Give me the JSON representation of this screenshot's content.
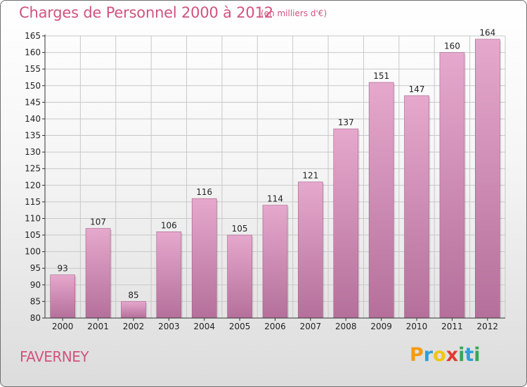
{
  "chart_data": {
    "type": "bar",
    "title": "Charges de Personnel 2000 à 2012",
    "subtitle": "(en milliers d'€)",
    "categories": [
      "2000",
      "2001",
      "2002",
      "2003",
      "2004",
      "2005",
      "2006",
      "2007",
      "2008",
      "2009",
      "2010",
      "2011",
      "2012"
    ],
    "values": [
      93,
      107,
      85,
      106,
      116,
      105,
      114,
      121,
      137,
      151,
      147,
      160,
      164
    ],
    "ylim": [
      80,
      165
    ],
    "yticks": [
      80,
      85,
      90,
      95,
      100,
      105,
      110,
      115,
      120,
      125,
      130,
      135,
      140,
      145,
      150,
      155,
      160,
      165
    ],
    "xlabel": "",
    "ylabel": "",
    "grid": true,
    "legend": "none"
  },
  "footer": {
    "city": "FAVERNEY",
    "brand": "Proxiti"
  },
  "colors": {
    "accent": "#d2537e",
    "bar_top": "#e6a8cd",
    "bar_bottom": "#b4709a",
    "grid": "#c8c8c8",
    "axis": "#333333",
    "logo_p": "#f39c12",
    "logo_r": "#2d9fd9",
    "logo_o": "#f2c511",
    "logo_x": "#e03c31",
    "logo_i": "#3aa655",
    "logo_t": "#2d9fd9",
    "logo_i2": "#3aa655"
  }
}
